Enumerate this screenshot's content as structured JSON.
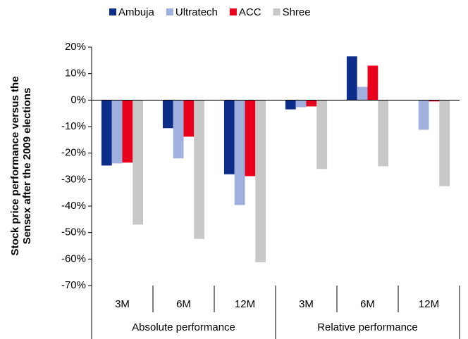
{
  "chart_data": {
    "type": "bar",
    "ylabel": [
      "Stock price performance versus the",
      "Sensex after the 2009 elections"
    ],
    "categories": [
      "3M",
      "6M",
      "12M",
      "3M",
      "6M",
      "12M"
    ],
    "groups": [
      "Absolute performance",
      "Relative performance"
    ],
    "series": [
      {
        "name": "Ambuja",
        "color": "#0c2d8a",
        "values": [
          -24.7,
          -10.6,
          -28,
          -3.5,
          16.5,
          0
        ]
      },
      {
        "name": "Ultratech",
        "color": "#9fb0de",
        "values": [
          -23.9,
          -22,
          -39.6,
          -2.7,
          5,
          -11.2
        ]
      },
      {
        "name": "ACC",
        "color": "#e8001c",
        "values": [
          -23.6,
          -13.8,
          -28.7,
          -2.4,
          13,
          -0.5
        ]
      },
      {
        "name": "Shree",
        "color": "#c8c8c8",
        "values": [
          -47,
          -52.4,
          -61.2,
          -26,
          -25,
          -32.5
        ]
      }
    ],
    "ylim": [
      -70,
      20
    ],
    "yticks": [
      {
        "value": -70,
        "label": "-70%"
      },
      {
        "value": -60,
        "label": "-60%"
      },
      {
        "value": -50,
        "label": "-50%"
      },
      {
        "value": -40,
        "label": "-40%"
      },
      {
        "value": -30,
        "label": "-30%"
      },
      {
        "value": -20,
        "label": "-20%"
      },
      {
        "value": -10,
        "label": "-10%"
      },
      {
        "value": 0,
        "label": "0%"
      },
      {
        "value": 10,
        "label": "10%"
      },
      {
        "value": 20,
        "label": "20%"
      }
    ],
    "grid": false
  }
}
